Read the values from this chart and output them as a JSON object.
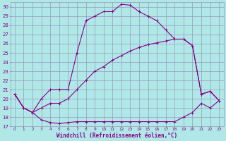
{
  "xlabel": "Windchill (Refroidissement éolien,°C)",
  "xlim": [
    -0.5,
    23.5
  ],
  "ylim": [
    17,
    30.5
  ],
  "xticks": [
    0,
    1,
    2,
    3,
    4,
    5,
    6,
    7,
    8,
    9,
    10,
    11,
    12,
    13,
    14,
    15,
    16,
    17,
    18,
    19,
    20,
    21,
    22,
    23
  ],
  "yticks": [
    17,
    18,
    19,
    20,
    21,
    22,
    23,
    24,
    25,
    26,
    27,
    28,
    29,
    30
  ],
  "background_color": "#b0e8e8",
  "grid_color": "#9999bb",
  "line_color": "#880088",
  "line1_x": [
    0,
    1,
    2,
    3,
    4,
    5,
    6,
    7,
    8,
    9,
    10,
    11,
    12,
    13,
    14,
    15,
    16,
    17,
    18,
    19,
    20,
    21,
    22,
    23
  ],
  "line1_y": [
    20.5,
    19.0,
    18.5,
    17.7,
    17.4,
    17.3,
    17.4,
    17.5,
    17.5,
    17.5,
    17.5,
    17.5,
    17.5,
    17.5,
    17.5,
    17.5,
    17.5,
    17.5,
    17.5,
    18.0,
    18.5,
    19.5,
    19.0,
    19.8
  ],
  "line2_x": [
    0,
    1,
    2,
    3,
    4,
    5,
    6,
    7,
    8,
    9,
    10,
    11,
    12,
    13,
    14,
    15,
    16,
    17,
    18,
    19,
    20,
    21,
    22,
    23
  ],
  "line2_y": [
    20.5,
    19.0,
    18.5,
    20.0,
    21.0,
    21.0,
    21.0,
    25.0,
    28.5,
    29.0,
    29.5,
    29.5,
    30.3,
    30.2,
    29.5,
    29.0,
    28.5,
    27.5,
    26.5,
    26.5,
    25.8,
    20.5,
    20.8,
    19.8
  ],
  "line3_x": [
    0,
    1,
    2,
    3,
    4,
    5,
    6,
    7,
    8,
    9,
    10,
    11,
    12,
    13,
    14,
    15,
    16,
    17,
    18,
    19,
    20,
    21,
    22,
    23
  ],
  "line3_y": [
    20.5,
    19.0,
    18.5,
    19.0,
    19.5,
    19.5,
    20.0,
    21.0,
    22.0,
    23.0,
    23.5,
    24.2,
    24.7,
    25.2,
    25.6,
    25.9,
    26.1,
    26.3,
    26.5,
    26.5,
    25.8,
    20.5,
    20.8,
    19.8
  ]
}
